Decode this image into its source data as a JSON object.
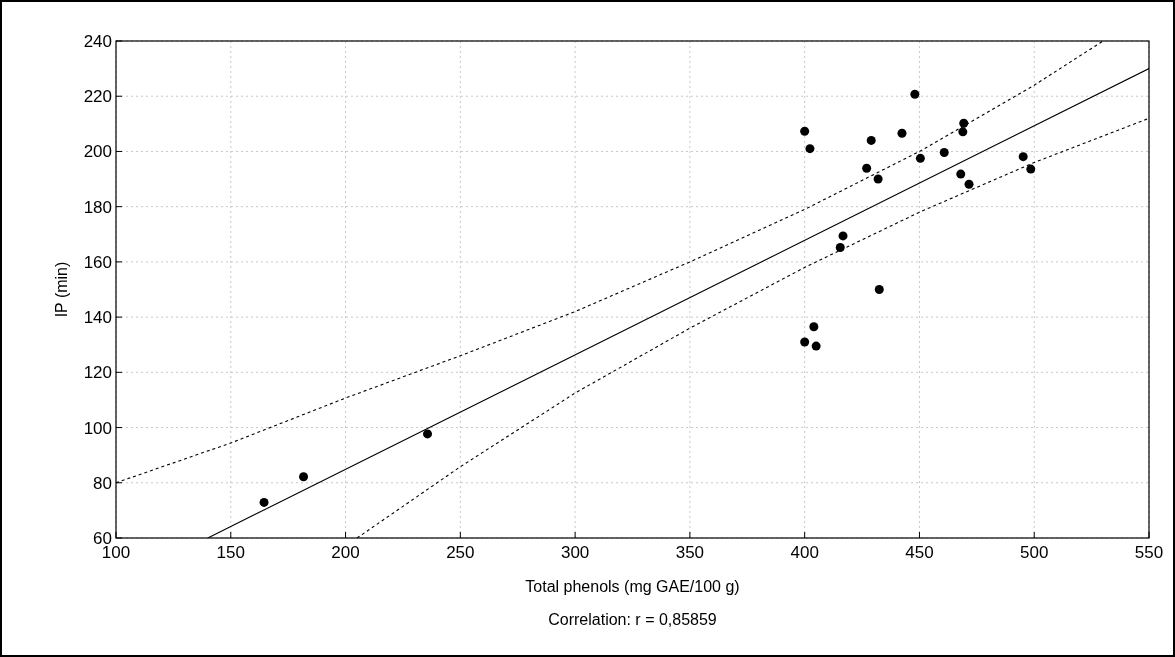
{
  "chart_data": {
    "type": "scatter",
    "xlabel": "Total phenols (mg GAE/100 g)",
    "ylabel": "IP (min)",
    "annotations": [
      "Correlation: r = 0,85859"
    ],
    "xlim": [
      100,
      550
    ],
    "xticks": [
      100,
      150,
      200,
      250,
      300,
      350,
      400,
      450,
      500,
      550
    ],
    "ylim": [
      60,
      240
    ],
    "yticks": [
      60,
      80,
      100,
      120,
      140,
      160,
      180,
      200,
      220,
      240
    ],
    "grid": true,
    "marker": "circle",
    "series": [
      {
        "color": "#000000",
        "x": [
          164.5,
          181.7,
          235.7,
          400,
          402.3,
          404,
          400,
          405,
          416.7,
          415.5,
          432.5,
          427,
          429,
          432,
          442.4,
          448,
          450.4,
          460.8,
          468,
          468.9,
          469.3,
          471.6,
          495.2,
          498.5
        ],
        "values": [
          72.9,
          82.2,
          97.7,
          207.3,
          201,
          136.5,
          131,
          129.5,
          169.4,
          165.2,
          150,
          193.9,
          204,
          190,
          206.6,
          220.7,
          197.5,
          199.6,
          191.8,
          207.1,
          210.2,
          188.1,
          198.1,
          193.6
        ]
      },
      {
        "type": "line",
        "color": "#000000",
        "line_style": "solid",
        "marker": "none",
        "x": [
          140,
          550
        ],
        "values": [
          60,
          230
        ]
      },
      {
        "type": "line",
        "color": "#000000",
        "line_style": "dotted",
        "marker": "none",
        "x": [
          100,
          150,
          200,
          250,
          300,
          350,
          400,
          450,
          500,
          530
        ],
        "values": [
          80,
          94.4,
          110.7,
          126,
          142,
          160,
          179,
          200,
          224,
          240
        ]
      },
      {
        "type": "line",
        "color": "#000000",
        "line_style": "dotted",
        "marker": "none",
        "x": [
          205,
          250,
          300,
          350,
          400,
          450,
          500,
          550
        ],
        "values": [
          60,
          85.8,
          112.5,
          136,
          158,
          178,
          196,
          212
        ]
      }
    ]
  }
}
